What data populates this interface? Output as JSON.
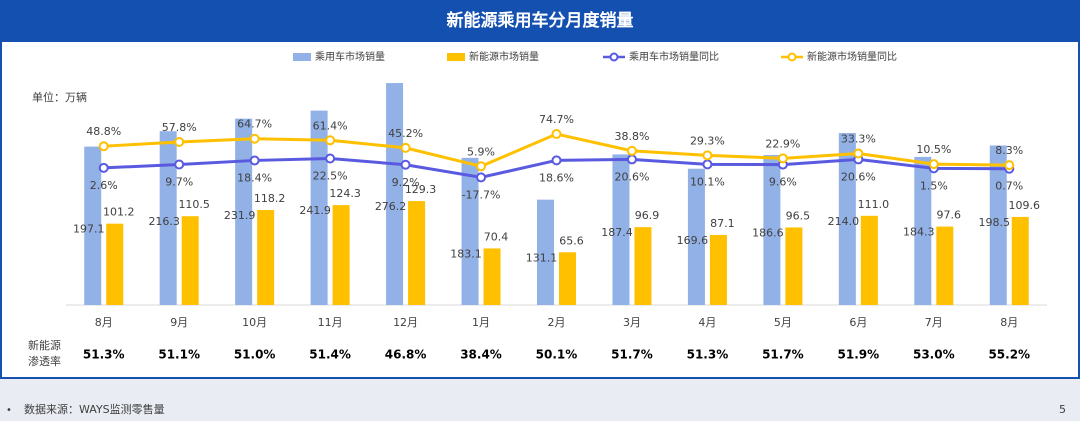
{
  "chart_data": {
    "type": "bar-line",
    "title": "新能源乘用车分月度销量",
    "unit": "单位：万辆",
    "categories": [
      "8月",
      "9月",
      "10月",
      "11月",
      "12月",
      "1月",
      "2月",
      "3月",
      "4月",
      "5月",
      "6月",
      "7月",
      "8月"
    ],
    "ylim": [
      0,
      280
    ],
    "y2lim": [
      -290,
      190
    ],
    "series": [
      {
        "name": "乘用车市场销量",
        "type": "bar",
        "color": "#92b1e6",
        "values": [
          197.1,
          216.3,
          231.9,
          241.9,
          276.2,
          183.1,
          131.1,
          187.4,
          169.6,
          186.6,
          214.0,
          184.3,
          198.5
        ],
        "value_labels": [
          "197.1",
          "216.3",
          "231.9",
          "241.9",
          "276.2",
          "183.1",
          "131.1",
          "187.4",
          "169.6",
          "186.6",
          "214.0",
          "184.3",
          "198.5"
        ]
      },
      {
        "name": "新能源市场销量",
        "type": "bar",
        "color": "#ffc000",
        "values": [
          101.2,
          110.5,
          118.2,
          124.3,
          129.3,
          70.4,
          65.6,
          96.9,
          87.1,
          96.5,
          111.0,
          97.6,
          109.6
        ],
        "value_labels": [
          "101.2",
          "110.5",
          "118.2",
          "124.3",
          "129.3",
          "70.4",
          "65.6",
          "96.9",
          "87.1",
          "96.5",
          "111.0",
          "97.6",
          "109.6"
        ]
      },
      {
        "name": "乘用车市场销量同比",
        "type": "line",
        "axis": "y2",
        "color": "#5a5ae0",
        "values": [
          2.6,
          9.7,
          18.4,
          22.5,
          9.2,
          -17.7,
          18.6,
          20.6,
          10.1,
          9.6,
          20.6,
          1.5,
          0.7
        ],
        "value_labels": [
          "2.6%",
          "9.7%",
          "18.4%",
          "22.5%",
          "9.2%",
          "-17.7%",
          "18.6%",
          "20.6%",
          "10.1%",
          "9.6%",
          "20.6%",
          "1.5%",
          "0.7%"
        ]
      },
      {
        "name": "新能源市场销量同比",
        "type": "line",
        "axis": "y2",
        "color": "#ffc000",
        "values": [
          48.8,
          57.8,
          64.7,
          61.4,
          45.2,
          5.9,
          74.7,
          38.8,
          29.3,
          22.9,
          33.3,
          10.5,
          8.3
        ],
        "value_labels": [
          "48.8%",
          "57.8%",
          "64.7%",
          "61.4%",
          "45.2%",
          "5.9%",
          "74.7%",
          "38.8%",
          "29.3%",
          "22.9%",
          "33.3%",
          "10.5%",
          "8.3%"
        ]
      }
    ],
    "penetration_label": [
      "新能源",
      "渗透率"
    ],
    "penetration": [
      "51.3%",
      "51.1%",
      "51.0%",
      "51.4%",
      "46.8%",
      "38.4%",
      "50.1%",
      "51.7%",
      "51.3%",
      "51.7%",
      "51.9%",
      "53.0%",
      "55.2%"
    ]
  },
  "footer": {
    "source": "数据来源：WAYS监测零售量",
    "page": "5"
  }
}
